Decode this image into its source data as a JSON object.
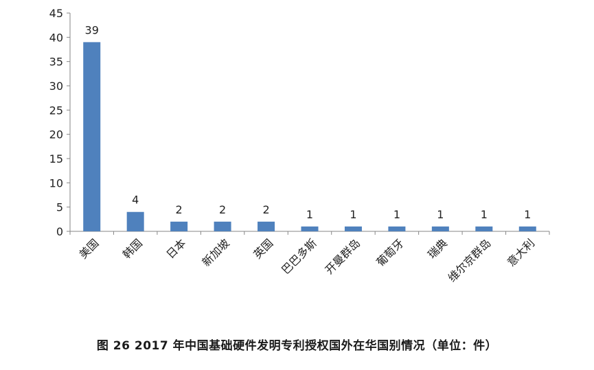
{
  "chart_data": {
    "type": "bar",
    "title": "",
    "xlabel": "",
    "ylabel": "",
    "categories": [
      "美国",
      "韩国",
      "日本",
      "新加坡",
      "英国",
      "巴巴多斯",
      "开曼群岛",
      "葡萄牙",
      "瑞典",
      "维尔京群岛",
      "意大利"
    ],
    "values": [
      39,
      4,
      2,
      2,
      2,
      1,
      1,
      1,
      1,
      1,
      1
    ],
    "data_labels": [
      "39",
      "4",
      "2",
      "2",
      "2",
      "1",
      "1",
      "1",
      "1",
      "1",
      "1"
    ],
    "ylim": [
      0,
      45
    ],
    "yticks": [
      0,
      5,
      10,
      15,
      20,
      25,
      30,
      35,
      40,
      45
    ],
    "ytick_labels": [
      "0",
      "5",
      "10",
      "15",
      "20",
      "25",
      "30",
      "35",
      "40",
      "45"
    ],
    "bar_color": "#4f81bd",
    "grid": false,
    "legend": "none"
  },
  "caption": "图 26 2017 年中国基础硬件发明专利授权国外在华国别情况（单位：件）"
}
